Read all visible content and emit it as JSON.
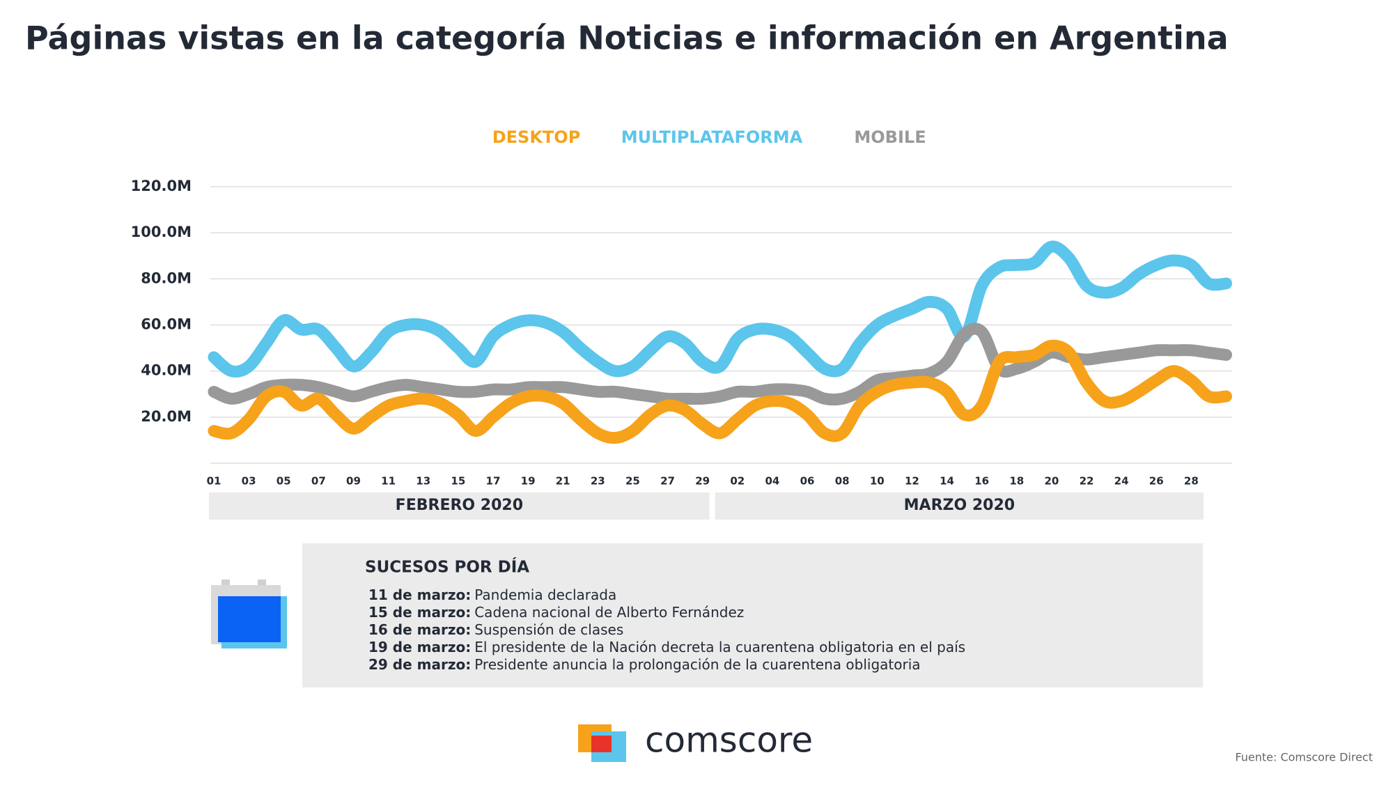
{
  "chart_data": {
    "type": "line",
    "title": "Páginas vistas en la categoría Noticias e información en Argentina",
    "categories": [
      "01",
      null,
      "03",
      null,
      "05",
      null,
      "07",
      null,
      "09",
      null,
      "11",
      null,
      "13",
      null,
      "15",
      null,
      "17",
      null,
      "19",
      null,
      "21",
      null,
      "23",
      null,
      "25",
      null,
      "27",
      null,
      "29",
      null,
      "02",
      null,
      "04",
      null,
      "06",
      null,
      "08",
      null,
      "10",
      null,
      "12",
      null,
      "14",
      null,
      "16",
      null,
      "18",
      null,
      "20",
      null,
      "22",
      null,
      "24",
      null,
      "26",
      null,
      "28",
      null,
      null
    ],
    "groups": [
      {
        "label": "FEBRERO 2020",
        "from": 0,
        "to": 28
      },
      {
        "label": "MARZO 2020",
        "from": 29,
        "to": 57
      }
    ],
    "series": [
      {
        "name": "MULTIPLATAFORMA",
        "color": "#5bc5eb",
        "values": [
          46,
          40,
          42,
          52,
          62,
          58,
          58,
          50,
          42,
          48,
          57,
          60,
          60,
          57,
          50,
          44,
          55,
          60,
          62,
          61,
          57,
          50,
          44,
          40,
          42,
          49,
          55,
          52,
          44,
          42,
          54,
          58,
          58,
          55,
          48,
          41,
          41,
          52,
          60,
          64,
          67,
          70,
          67,
          55,
          77,
          85,
          86,
          87,
          94,
          89,
          77,
          74,
          76,
          82,
          86,
          88,
          86,
          78,
          78
        ]
      },
      {
        "name": "MOBILE",
        "color": "#999999",
        "values": [
          31,
          28,
          30,
          33,
          34,
          34,
          33,
          31,
          29,
          31,
          33,
          34,
          33,
          32,
          31,
          31,
          32,
          32,
          33,
          33,
          33,
          32,
          31,
          31,
          30,
          29,
          28,
          28,
          28,
          29,
          31,
          31,
          32,
          32,
          31,
          28,
          28,
          31,
          36,
          37,
          38,
          39,
          44,
          56,
          57,
          41,
          41,
          44,
          48,
          46,
          45,
          46,
          47,
          48,
          49,
          49,
          49,
          48,
          47
        ]
      },
      {
        "name": "DESKTOP",
        "color": "#f7a21b",
        "values": [
          14,
          13,
          19,
          29,
          31,
          25,
          28,
          21,
          15,
          20,
          25,
          27,
          28,
          26,
          21,
          14,
          20,
          26,
          29,
          29,
          26,
          19,
          13,
          11,
          14,
          21,
          25,
          23,
          17,
          13,
          19,
          25,
          27,
          26,
          21,
          13,
          13,
          25,
          31,
          34,
          35,
          35,
          31,
          21,
          25,
          44,
          46,
          47,
          51,
          48,
          35,
          27,
          27,
          31,
          36,
          40,
          36,
          29,
          29
        ]
      }
    ],
    "legend_order": [
      2,
      0,
      1
    ],
    "ylim": [
      0,
      120
    ],
    "yticks": [
      {
        "value": 20,
        "label": "20.0M"
      },
      {
        "value": 40,
        "label": "40.0M"
      },
      {
        "value": 60,
        "label": "60.0M"
      },
      {
        "value": 80,
        "label": "80.0M"
      },
      {
        "value": 100,
        "label": "100.0M"
      },
      {
        "value": 120,
        "label": "120.0M"
      }
    ],
    "grid": true
  },
  "events": {
    "title": "SUCESOS POR DÍA",
    "items": [
      {
        "date": "11 de marzo:",
        "text": "Pandemia declarada"
      },
      {
        "date": "15 de marzo:",
        "text": "Cadena nacional de Alberto Fernández"
      },
      {
        "date": "16 de marzo:",
        "text": "Suspensión de clases"
      },
      {
        "date": "19 de marzo:",
        "text": "El presidente de la Nación decreta la cuarentena obligatoria en el país"
      },
      {
        "date": "29 de marzo:",
        "text": "Presidente anuncia la prolongación de la cuarentena obligatoria"
      }
    ]
  },
  "logo": "comscore",
  "source": "Fuente: Comscore Direct"
}
